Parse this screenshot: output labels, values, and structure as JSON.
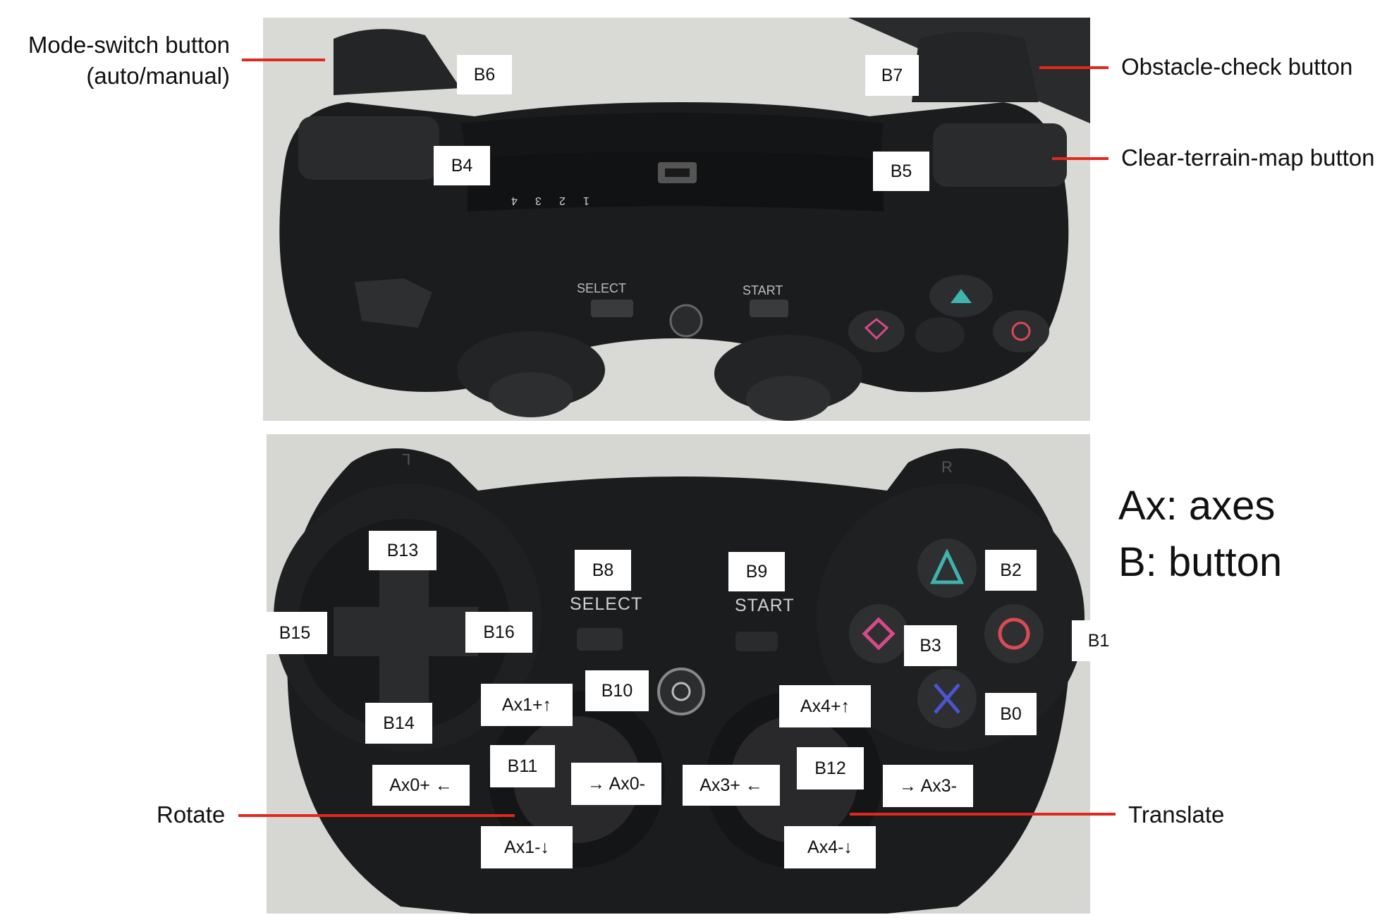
{
  "callouts": {
    "mode_switch": {
      "line1": "Mode-switch button",
      "line2": "(auto/manual)"
    },
    "obstacle_check": "Obstacle-check button",
    "clear_terrain": "Clear-terrain-map button",
    "rotate": "Rotate",
    "translate": "Translate"
  },
  "legend": {
    "axes": "Ax: axes",
    "button": "B: button"
  },
  "top_labels": {
    "b6": "B6",
    "b7": "B7",
    "b4": "B4",
    "b5": "B5"
  },
  "top_print": {
    "select": "SELECT",
    "start": "START",
    "led_4": "4",
    "led_3": "3",
    "led_2": "2",
    "led_1": "1"
  },
  "bottom_print": {
    "select": "SELECT",
    "start": "START",
    "l": "L",
    "r": "R"
  },
  "bottom_labels": {
    "b13": "B13",
    "b15": "B15",
    "b16": "B16",
    "b14": "B14",
    "b8": "B8",
    "b9": "B9",
    "b10": "B10",
    "b2": "B2",
    "b3": "B3",
    "b1": "B1",
    "b0": "B0",
    "b11": "B11",
    "b12": "B12",
    "ax1_plus": "Ax1+↑",
    "ax4_plus": "Ax4+↑",
    "ax0_plus": "Ax0+ ←",
    "ax0_minus": "→ Ax0-",
    "ax3_plus": "Ax3+ ←",
    "ax3_minus": "→ Ax3-",
    "ax1_minus": "Ax1-↓",
    "ax4_minus": "Ax4-↓"
  },
  "colors": {
    "leader_line": "#e0281e",
    "controller_body": "#1b1c1e",
    "triangle": "#3fb3ad",
    "circle": "#d94a55",
    "square": "#d64a8a",
    "cross": "#4a55d0"
  }
}
